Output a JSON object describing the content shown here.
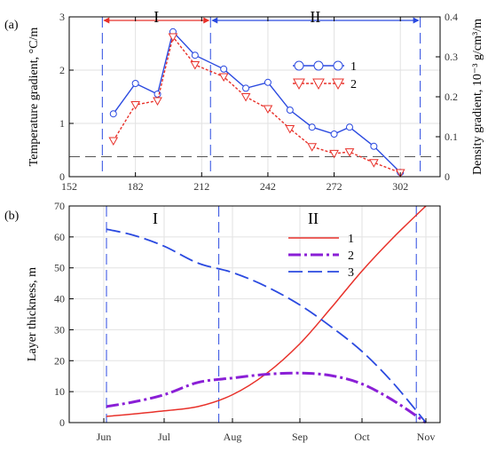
{
  "chart_data": [
    {
      "type": "line",
      "panel_label": "(a)",
      "xlabel": "",
      "ylabel": "Temperature gradient, °C/m",
      "y2label": "Density gradient, 10⁻³ g/cm³/m",
      "xlim": [
        152,
        320
      ],
      "ylim": [
        0,
        3
      ],
      "y2lim": [
        0,
        0.4
      ],
      "x_ticks": [
        152,
        182,
        212,
        242,
        272,
        302
      ],
      "y_ticks": [
        0,
        1,
        2,
        3
      ],
      "y2_ticks": [
        "0",
        "0.1",
        "0.2",
        "0.3",
        "0.4"
      ],
      "grid": true,
      "period_boundaries": [
        167,
        216,
        311
      ],
      "period_labels": [
        {
          "label": "I",
          "x_start": 167,
          "x_end": 216,
          "color": "#e8312a"
        },
        {
          "label": "II",
          "x_start": 216,
          "x_end": 311,
          "color": "#2b4ae0"
        }
      ],
      "reference_line_y2": 0.05,
      "series": [
        {
          "name": "1",
          "color": "#2b4ae0",
          "marker": "circle",
          "axis": "left",
          "x": [
            172,
            182,
            192,
            199,
            209,
            222,
            232,
            242,
            252,
            262,
            272,
            279,
            290,
            302
          ],
          "y": [
            1.18,
            1.75,
            1.55,
            2.72,
            2.28,
            2.02,
            1.66,
            1.77,
            1.25,
            0.93,
            0.8,
            0.93,
            0.57,
            0.08
          ]
        },
        {
          "name": "2",
          "color": "#e8312a",
          "marker": "triangle-down",
          "axis": "right",
          "x": [
            172,
            182,
            192,
            199,
            209,
            222,
            232,
            242,
            252,
            262,
            272,
            279,
            290,
            302
          ],
          "y": [
            0.09,
            0.18,
            0.19,
            0.35,
            0.28,
            0.25,
            0.2,
            0.17,
            0.12,
            0.075,
            0.058,
            0.062,
            0.035,
            0.01
          ]
        }
      ],
      "legend_position": "top-right"
    },
    {
      "type": "line",
      "panel_label": "(b)",
      "xlabel": "",
      "ylabel": "Layer thickness, m",
      "x_ticks": [
        "Jun",
        "Jul",
        "Aug",
        "Sep",
        "Oct",
        "Nov"
      ],
      "ylim": [
        0,
        70
      ],
      "y_ticks": [
        0,
        10,
        20,
        30,
        40,
        50,
        60,
        70
      ],
      "grid": true,
      "period_labels": [
        "I",
        "II"
      ],
      "series": [
        {
          "name": "1",
          "color": "#e8312a",
          "style": "solid",
          "x": [
            0,
            0.5,
            1,
            1.5,
            2,
            2.5,
            3,
            3.5,
            4,
            4.5,
            5
          ],
          "y": [
            2,
            2.8,
            3.8,
            5.2,
            9,
            15.8,
            25.5,
            37,
            49,
            60,
            70
          ]
        },
        {
          "name": "2",
          "color": "#8a1fd6",
          "style": "dash-dot",
          "x": [
            0,
            0.5,
            1,
            1.5,
            2,
            2.5,
            3,
            3.5,
            4,
            4.5,
            5
          ],
          "y": [
            5.2,
            6.7,
            9,
            13,
            14.4,
            15.6,
            16,
            15.2,
            12.5,
            7,
            0
          ]
        },
        {
          "name": "3",
          "color": "#2b4ae0",
          "style": "dashed",
          "x": [
            0,
            0.5,
            1,
            1.5,
            2,
            2.5,
            3,
            3.5,
            4,
            4.5,
            5
          ],
          "y": [
            62.5,
            60.5,
            57,
            51.5,
            48.5,
            44,
            38,
            31,
            23,
            12.5,
            0
          ]
        }
      ],
      "legend_position": "top-right"
    }
  ]
}
